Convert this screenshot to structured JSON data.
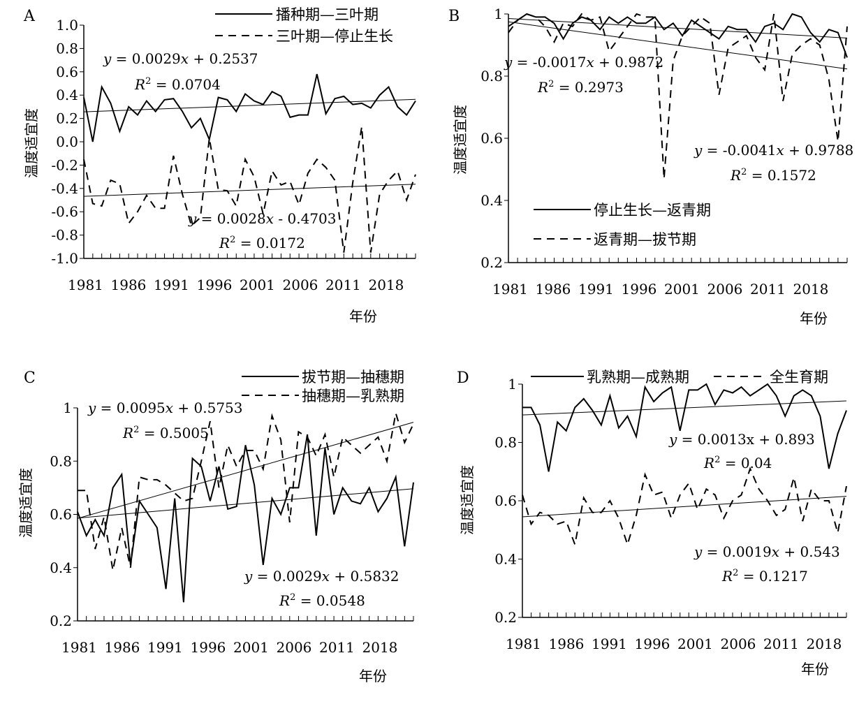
{
  "chart_data": [
    {
      "panel_letter": "A",
      "type": "line",
      "xlabel": "年份",
      "ylabel": "温度适宜度",
      "ylim": [
        -1.0,
        1.0
      ],
      "ytick_values": [
        -1.0,
        -0.8,
        -0.6,
        -0.4,
        -0.2,
        0.0,
        0.2,
        0.4,
        0.6,
        0.8,
        1.0
      ],
      "ytick_labels": [
        "-1.0",
        "-0.8",
        "-0.6",
        "-0.4",
        "-0.2",
        "0.0",
        "0.2",
        "0.4",
        "0.6",
        "0.8",
        "1.0"
      ],
      "xtick_labels": [
        "1981",
        "1986",
        "1991",
        "1996",
        "2001",
        "2006",
        "2011",
        "2018"
      ],
      "legend_position": "top-right",
      "series": [
        {
          "name": "播种期—三叶期",
          "style": "solid",
          "values": [
            0.38,
            0.0,
            0.47,
            0.33,
            0.09,
            0.3,
            0.23,
            0.35,
            0.26,
            0.36,
            0.37,
            0.26,
            0.12,
            0.2,
            0.02,
            0.38,
            0.36,
            0.26,
            0.41,
            0.35,
            0.32,
            0.43,
            0.39,
            0.21,
            0.23,
            0.23,
            0.58,
            0.24,
            0.37,
            0.39,
            0.32,
            0.33,
            0.29,
            0.4,
            0.47,
            0.3,
            0.23,
            0.35
          ],
          "trend": {
            "slope": 0.0029,
            "intercept": 0.2537
          },
          "equation": {
            "y": "y",
            "eq": " = 0.0029",
            "x": "x",
            "rest": " + 0.2537"
          },
          "r2": {
            "label": "R",
            "sup": "2",
            "value": " = 0.0704"
          }
        },
        {
          "name": "三叶期—停止生长",
          "style": "dashed",
          "values": [
            -0.15,
            -0.53,
            -0.55,
            -0.33,
            -0.36,
            -0.7,
            -0.6,
            -0.46,
            -0.57,
            -0.57,
            -0.12,
            -0.45,
            -0.72,
            -0.65,
            0.03,
            -0.41,
            -0.42,
            -0.55,
            -0.15,
            -0.3,
            -0.62,
            -0.25,
            -0.37,
            -0.34,
            -0.54,
            -0.27,
            -0.15,
            -0.22,
            -0.33,
            -0.95,
            -0.35,
            0.13,
            -0.95,
            -0.45,
            -0.33,
            -0.25,
            -0.5,
            -0.28
          ],
          "trend": {
            "slope": 0.0028,
            "intercept": -0.4703
          },
          "equation": {
            "y": "y",
            "eq": " = 0.0028",
            "x": "x",
            "rest": " - 0.4703"
          },
          "r2": {
            "label": "R",
            "sup": "2",
            "value": " = 0.0172"
          }
        }
      ]
    },
    {
      "panel_letter": "B",
      "type": "line",
      "xlabel": "年份",
      "ylabel": "温度适宜度",
      "ylim": [
        0.2,
        1.0
      ],
      "ytick_values": [
        0.2,
        0.4,
        0.6,
        0.8,
        1.0
      ],
      "ytick_labels": [
        "0.2",
        "0.4",
        "0.6",
        "0.8",
        "1"
      ],
      "xtick_labels": [
        "1981",
        "1986",
        "1991",
        "1996",
        "2001",
        "2006",
        "2011",
        "2018"
      ],
      "legend_position": "bottom-left",
      "series": [
        {
          "name": "停止生长—返青期",
          "style": "solid",
          "values": [
            0.96,
            0.98,
            1.0,
            0.99,
            0.99,
            0.97,
            0.92,
            0.97,
            0.99,
            0.98,
            0.95,
            0.99,
            0.97,
            0.99,
            0.97,
            0.97,
            0.99,
            0.95,
            0.97,
            0.93,
            0.98,
            0.96,
            0.94,
            0.92,
            0.96,
            0.95,
            0.95,
            0.91,
            0.96,
            0.97,
            0.95,
            1.0,
            0.99,
            0.94,
            0.91,
            0.95,
            0.94,
            0.86
          ],
          "trend": {
            "slope": -0.0017,
            "intercept": 0.9872
          },
          "equation": {
            "y": "y",
            "eq": " = -0.0017",
            "x": "x",
            "rest": " + 0.9872"
          },
          "r2": {
            "label": "R",
            "sup": "2",
            "value": " = 0.2973"
          }
        },
        {
          "name": "返青期—拔节期",
          "style": "dashed",
          "values": [
            0.94,
            0.98,
            1.0,
            0.99,
            0.96,
            0.91,
            0.97,
            0.96,
            1.0,
            0.98,
            0.99,
            0.88,
            0.92,
            0.96,
            1.0,
            0.99,
            0.99,
            0.47,
            0.85,
            0.93,
            0.96,
            0.99,
            0.97,
            0.74,
            0.89,
            0.91,
            0.93,
            0.86,
            0.82,
            1.0,
            0.72,
            0.87,
            0.9,
            0.92,
            0.9,
            0.79,
            0.59,
            0.96
          ],
          "trend": {
            "slope": -0.0041,
            "intercept": 0.9788
          },
          "equation": {
            "y": "y",
            "eq": " = -0.0041",
            "x": "x",
            "rest": " + 0.9788"
          },
          "r2": {
            "label": "R",
            "sup": "2",
            "value": " = 0.1572"
          }
        }
      ]
    },
    {
      "panel_letter": "C",
      "type": "line",
      "xlabel": "年份",
      "ylabel": "温度适宜度",
      "ylim": [
        0.2,
        1.0
      ],
      "ytick_values": [
        0.2,
        0.4,
        0.6,
        0.8,
        1.0
      ],
      "ytick_labels": [
        "0.2",
        "0.4",
        "0.6",
        "0.8",
        "1"
      ],
      "xtick_labels": [
        "1981",
        "1986",
        "1991",
        "1996",
        "2001",
        "2006",
        "2011",
        "2018"
      ],
      "legend_position": "top-right",
      "series": [
        {
          "name": "拔节期—抽穗期",
          "style": "solid",
          "values": [
            0.61,
            0.52,
            0.58,
            0.52,
            0.7,
            0.75,
            0.41,
            0.65,
            0.6,
            0.55,
            0.32,
            0.66,
            0.27,
            0.81,
            0.78,
            0.65,
            0.78,
            0.62,
            0.63,
            0.86,
            0.71,
            0.41,
            0.66,
            0.6,
            0.7,
            0.7,
            0.9,
            0.52,
            0.85,
            0.6,
            0.7,
            0.65,
            0.64,
            0.7,
            0.61,
            0.66,
            0.74,
            0.48,
            0.72
          ],
          "trend": {
            "slope": 0.0029,
            "intercept": 0.5832
          },
          "equation": {
            "y": "y",
            "eq": " = 0.0029",
            "x": "x",
            "rest": " + 0.5832"
          },
          "r2": {
            "label": "R",
            "sup": "2",
            "value": " = 0.0548"
          }
        },
        {
          "name": "抽穗期—乳熟期",
          "style": "dashed",
          "values": [
            0.69,
            0.69,
            0.47,
            0.59,
            0.39,
            0.55,
            0.4,
            0.74,
            0.73,
            0.73,
            0.71,
            0.68,
            0.65,
            0.66,
            0.8,
            0.95,
            0.7,
            0.86,
            0.78,
            0.84,
            0.84,
            0.77,
            0.97,
            0.88,
            0.57,
            0.91,
            0.89,
            0.82,
            0.9,
            0.74,
            0.89,
            0.86,
            0.83,
            0.86,
            0.89,
            0.8,
            0.98,
            0.87,
            0.94
          ],
          "trend": {
            "slope": 0.0095,
            "intercept": 0.5753
          },
          "equation": {
            "y": "y",
            "eq": " = 0.0095",
            "x": "x",
            "rest": " + 0.5753"
          },
          "r2": {
            "label": "R",
            "sup": "2",
            "value": " = 0.5005"
          }
        }
      ]
    },
    {
      "panel_letter": "D",
      "type": "line",
      "xlabel": "年份",
      "ylabel": "温度适宜度",
      "ylim": [
        0.2,
        1.0
      ],
      "ytick_values": [
        0.2,
        0.4,
        0.6,
        0.8,
        1.0
      ],
      "ytick_labels": [
        "0.2",
        "0.4",
        "0.6",
        "0.8",
        "1"
      ],
      "xtick_labels": [
        "1981",
        "1986",
        "1991",
        "1996",
        "2001",
        "2006",
        "2011",
        "2018"
      ],
      "legend_position": "top",
      "series": [
        {
          "name": "乳熟期—成熟期",
          "style": "solid",
          "values": [
            0.92,
            0.92,
            0.86,
            0.7,
            0.87,
            0.84,
            0.92,
            0.95,
            0.91,
            0.86,
            0.96,
            0.85,
            0.89,
            0.82,
            0.99,
            0.94,
            0.97,
            0.99,
            0.84,
            0.98,
            0.98,
            1.0,
            0.93,
            0.98,
            0.97,
            0.99,
            0.96,
            0.98,
            1.0,
            0.96,
            0.89,
            0.96,
            0.98,
            0.96,
            0.89,
            0.71,
            0.83,
            0.91
          ],
          "trend": {
            "slope": 0.0013,
            "intercept": 0.893
          },
          "equation": {
            "y": "y",
            "eq": " = 0.0013x + 0.893",
            "x": "",
            "rest": ""
          },
          "r2": {
            "label": "R",
            "sup": "2",
            "value": " = 0.04"
          }
        },
        {
          "name": "全生育期",
          "style": "dashed",
          "values": [
            0.62,
            0.52,
            0.56,
            0.55,
            0.52,
            0.53,
            0.45,
            0.61,
            0.56,
            0.56,
            0.6,
            0.54,
            0.45,
            0.55,
            0.69,
            0.62,
            0.63,
            0.54,
            0.62,
            0.66,
            0.57,
            0.64,
            0.62,
            0.54,
            0.6,
            0.62,
            0.71,
            0.64,
            0.6,
            0.55,
            0.57,
            0.68,
            0.53,
            0.64,
            0.6,
            0.6,
            0.49,
            0.65
          ],
          "trend": {
            "slope": 0.0019,
            "intercept": 0.543
          },
          "equation": {
            "y": "y",
            "eq": " = 0.0019",
            "x": "x",
            "rest": " + 0.543"
          },
          "r2": {
            "label": "R",
            "sup": "2",
            "value": " = 0.1217"
          }
        }
      ]
    }
  ]
}
